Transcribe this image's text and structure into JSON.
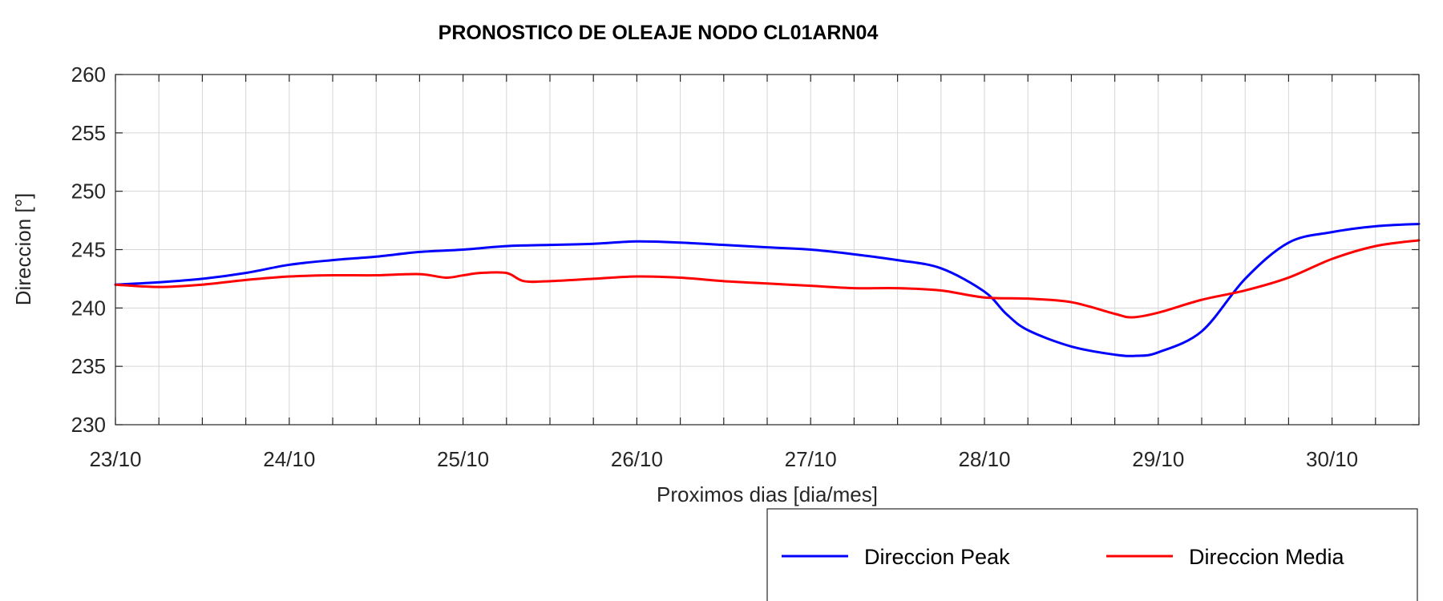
{
  "chart_data": {
    "type": "line",
    "title": "PRONOSTICO DE OLEAJE NODO CL01ARN04",
    "xlabel": "Proximos dias [dia/mes]",
    "ylabel": "Direccion [°]",
    "ylim": [
      230,
      260
    ],
    "yticks": [
      230,
      235,
      240,
      245,
      250,
      255,
      260
    ],
    "xlim": [
      0,
      7.5
    ],
    "xticks": [
      0,
      1,
      2,
      3,
      4,
      5,
      6,
      7
    ],
    "xtick_labels": [
      "23/10",
      "24/10",
      "25/10",
      "26/10",
      "27/10",
      "28/10",
      "29/10",
      "30/10"
    ],
    "x_minor_step": 0.25,
    "grid": true,
    "legend_position": "bottom-right",
    "series": [
      {
        "name": "Direccion Peak",
        "color": "#0000ff",
        "x": [
          0,
          0.25,
          0.5,
          0.75,
          1,
          1.25,
          1.5,
          1.75,
          2,
          2.25,
          2.5,
          2.75,
          3,
          3.25,
          3.5,
          3.75,
          4,
          4.25,
          4.5,
          4.75,
          5,
          5.125,
          5.25,
          5.5,
          5.75,
          5.875,
          6,
          6.25,
          6.5,
          6.75,
          7,
          7.25,
          7.5
        ],
        "y": [
          242,
          242.2,
          242.5,
          243,
          243.7,
          244.1,
          244.4,
          244.8,
          245,
          245.3,
          245.4,
          245.5,
          245.7,
          245.6,
          245.4,
          245.2,
          245,
          244.6,
          244.1,
          243.4,
          241.4,
          239.5,
          238.1,
          236.7,
          236.0,
          235.9,
          236.2,
          238.0,
          242.5,
          245.6,
          246.5,
          247.0,
          247.2
        ]
      },
      {
        "name": "Direccion Media",
        "color": "#ff0000",
        "x": [
          0,
          0.25,
          0.5,
          0.75,
          1,
          1.25,
          1.5,
          1.75,
          1.9,
          2,
          2.1,
          2.25,
          2.35,
          2.5,
          2.75,
          3,
          3.25,
          3.5,
          3.75,
          4,
          4.25,
          4.5,
          4.75,
          5,
          5.25,
          5.5,
          5.75,
          5.85,
          6,
          6.25,
          6.5,
          6.75,
          7,
          7.25,
          7.5
        ],
        "y": [
          242,
          241.8,
          242.0,
          242.4,
          242.7,
          242.8,
          242.8,
          242.9,
          242.6,
          242.8,
          243.0,
          243.0,
          242.3,
          242.3,
          242.5,
          242.7,
          242.6,
          242.3,
          242.1,
          241.9,
          241.7,
          241.7,
          241.5,
          240.9,
          240.8,
          240.5,
          239.5,
          239.2,
          239.6,
          240.7,
          241.5,
          242.6,
          244.2,
          245.3,
          245.8
        ]
      }
    ]
  }
}
